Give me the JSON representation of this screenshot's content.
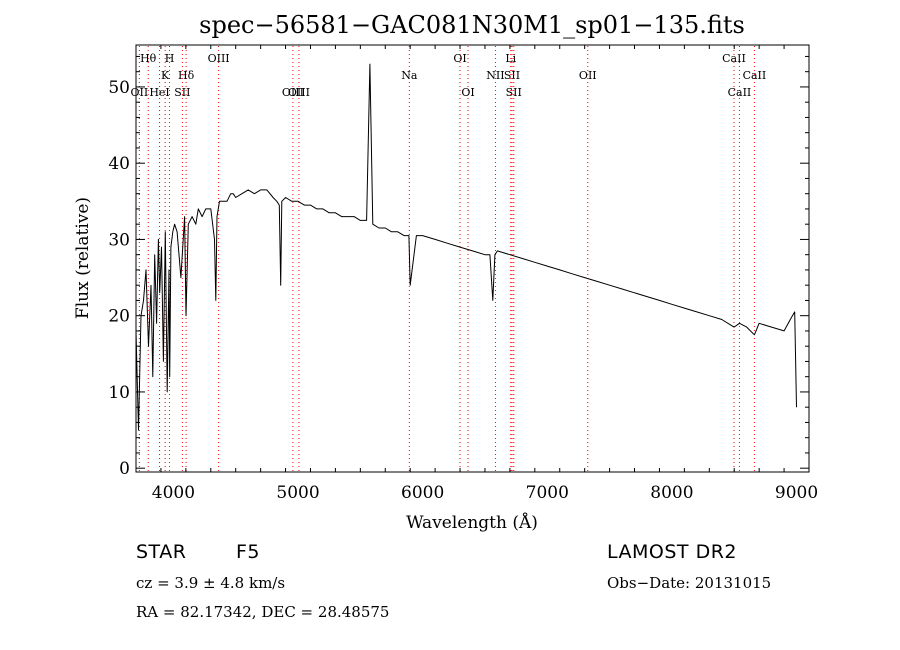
{
  "chart_data": {
    "type": "line",
    "title": "spec−56581−GAC081N30M1_sp01−135.fits",
    "xlabel": "Wavelength (Å)",
    "ylabel": "Flux (relative)",
    "xlim": [
      3700,
      9100
    ],
    "ylim": [
      -0.5,
      55.5
    ],
    "xticks": [
      4000,
      5000,
      6000,
      7000,
      8000,
      9000
    ],
    "yticks": [
      0,
      10,
      20,
      30,
      40,
      50
    ],
    "grid": false,
    "line_color": "#000000",
    "marker_color": "#ff0000",
    "series": [
      {
        "x": [
          3700,
          3720,
          3740,
          3760,
          3780,
          3800,
          3820,
          3835,
          3850,
          3865,
          3880,
          3890,
          3905,
          3920,
          3935,
          3950,
          3965,
          3970,
          3980,
          3995,
          4010,
          4030,
          4060,
          4090,
          4101,
          4120,
          4150,
          4180,
          4200,
          4230,
          4260,
          4300,
          4330,
          4340,
          4350,
          4370,
          4400,
          4430,
          4460,
          4480,
          4500,
          4550,
          4600,
          4650,
          4700,
          4750,
          4800,
          4830,
          4850,
          4861,
          4870,
          4900,
          4950,
          5000,
          5050,
          5100,
          5150,
          5200,
          5250,
          5300,
          5350,
          5400,
          5450,
          5500,
          5550,
          5577,
          5600,
          5650,
          5700,
          5750,
          5800,
          5850,
          5890,
          5900,
          5950,
          6000,
          6100,
          6200,
          6300,
          6400,
          6500,
          6540,
          6563,
          6580,
          6600,
          6700,
          6800,
          6900,
          7000,
          7100,
          7200,
          7300,
          7400,
          7500,
          7600,
          7700,
          7800,
          7900,
          8000,
          8100,
          8200,
          8300,
          8400,
          8498,
          8542,
          8600,
          8662,
          8700,
          8800,
          8900,
          8950,
          8985,
          9000
        ],
        "y": [
          18,
          5,
          20,
          22,
          26,
          16,
          24,
          12,
          28,
          19,
          30,
          23,
          29,
          14,
          31,
          10,
          26,
          12,
          29,
          31,
          32,
          31,
          25,
          33,
          20,
          32,
          33,
          32,
          34,
          33,
          34,
          34,
          30,
          22,
          33,
          35,
          35,
          35,
          36,
          36,
          35.5,
          36,
          36.5,
          36,
          36.5,
          36.5,
          35.5,
          35,
          34.5,
          24,
          35,
          35.5,
          35,
          35,
          34.5,
          34.5,
          34,
          34,
          33.5,
          33.5,
          33,
          33,
          33,
          32.5,
          32.5,
          53,
          32,
          31.5,
          31.5,
          31,
          31,
          30.5,
          30.5,
          24,
          30.5,
          30.5,
          30,
          29.5,
          29,
          28.5,
          28,
          28,
          22,
          28,
          28.5,
          28,
          27.5,
          27,
          26.5,
          26,
          25.5,
          25,
          24.5,
          24,
          23.5,
          23,
          22.5,
          22,
          21.5,
          21,
          20.5,
          20,
          19.5,
          18.5,
          19,
          18.5,
          17.5,
          19,
          18.5,
          18,
          19.5,
          20.5,
          8
        ]
      }
    ],
    "line_markers": [
      {
        "label": "Hθ",
        "x": 3798,
        "row": 0
      },
      {
        "label": "OII",
        "x": 3727,
        "row": 2
      },
      {
        "label": "H",
        "x": 3969,
        "row": 0
      },
      {
        "label": "K",
        "x": 3934,
        "row": 1
      },
      {
        "label": "HeI",
        "x": 3889,
        "row": 2
      },
      {
        "label": "Hδ",
        "x": 4102,
        "row": 1
      },
      {
        "label": "SII",
        "x": 4072,
        "row": 2
      },
      {
        "label": "OIII",
        "x": 4363,
        "row": 0
      },
      {
        "label": "OIII",
        "x": 4959,
        "row": 2
      },
      {
        "label": "OIII",
        "x": 5007,
        "row": 2
      },
      {
        "label": "Na",
        "x": 5893,
        "row": 1
      },
      {
        "label": "OI",
        "x": 6300,
        "row": 0
      },
      {
        "label": "OI",
        "x": 6364,
        "row": 2
      },
      {
        "label": "NII",
        "x": 6584,
        "row": 1
      },
      {
        "label": "Li",
        "x": 6707,
        "row": 0
      },
      {
        "label": "SII",
        "x": 6717,
        "row": 1
      },
      {
        "label": "SII",
        "x": 6731,
        "row": 2
      },
      {
        "label": "OII",
        "x": 7325,
        "row": 1
      },
      {
        "label": "CaII",
        "x": 8498,
        "row": 0
      },
      {
        "label": "CaII",
        "x": 8542,
        "row": 2
      },
      {
        "label": "CaII",
        "x": 8662,
        "row": 1
      }
    ]
  },
  "info": {
    "class_label": "STAR",
    "subclass": "F5",
    "survey": "LAMOST DR2",
    "cz": "cz = 3.9 ± 4.8 km/s",
    "obs_date": "Obs−Date: 20131015",
    "radec": "RA =  82.17342, DEC =  28.48575"
  }
}
